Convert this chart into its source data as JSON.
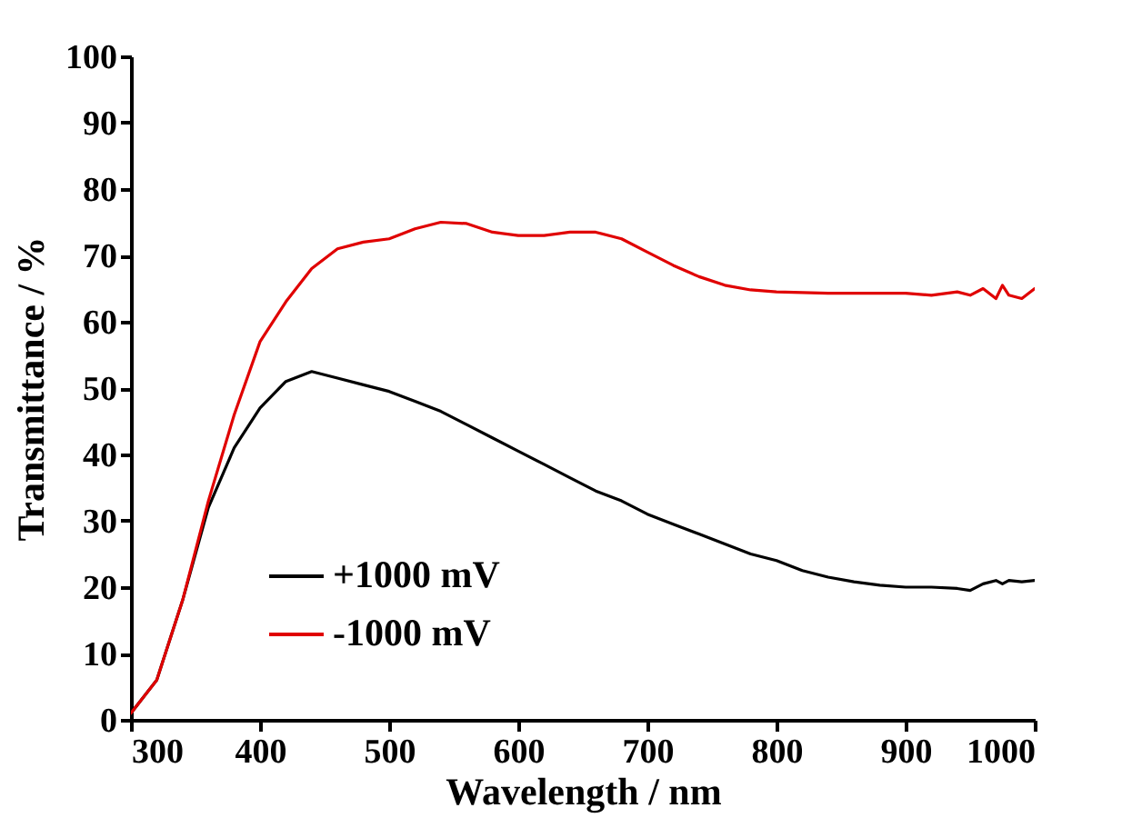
{
  "chart_data": {
    "type": "line",
    "xlabel": "Wavelength / nm",
    "ylabel": "Transmittance / %",
    "xlim": [
      300,
      1000
    ],
    "ylim": [
      0,
      100
    ],
    "xticks": [
      300,
      400,
      500,
      600,
      700,
      800,
      900,
      1000
    ],
    "yticks": [
      0,
      10,
      20,
      30,
      40,
      50,
      60,
      70,
      80,
      90,
      100
    ],
    "grid": false,
    "legend": "bottom left",
    "line_style": "solid",
    "x": [
      300,
      320,
      340,
      360,
      380,
      400,
      420,
      440,
      460,
      480,
      500,
      520,
      540,
      560,
      580,
      600,
      620,
      640,
      660,
      680,
      700,
      720,
      740,
      760,
      780,
      800,
      820,
      840,
      860,
      880,
      900,
      920,
      940,
      950,
      960,
      970,
      975,
      980,
      990,
      1000
    ],
    "series": [
      {
        "name": "+1000 mV",
        "color": "#000000",
        "values": [
          1,
          6,
          18,
          32,
          41,
          47,
          51,
          52.5,
          51.5,
          50.5,
          49.5,
          48,
          46.5,
          44.5,
          42.5,
          40.5,
          38.5,
          36.5,
          34.5,
          33,
          31,
          29.5,
          28,
          26.5,
          25,
          24,
          22.5,
          21.5,
          20.8,
          20.3,
          20,
          20,
          19.8,
          19.5,
          20.5,
          21,
          20.5,
          21,
          20.8,
          21
        ]
      },
      {
        "name": "-1000 mV",
        "color": "#e00000",
        "values": [
          1,
          6,
          18,
          33,
          46,
          57,
          63,
          68,
          71,
          72,
          72.5,
          74,
          75,
          74.8,
          73.5,
          73,
          73,
          73.5,
          73.5,
          72.5,
          70.5,
          68.5,
          66.8,
          65.5,
          64.8,
          64.5,
          64.4,
          64.3,
          64.3,
          64.3,
          64.3,
          64,
          64.5,
          64,
          65,
          63.5,
          65.5,
          64,
          63.5,
          65
        ]
      }
    ]
  }
}
